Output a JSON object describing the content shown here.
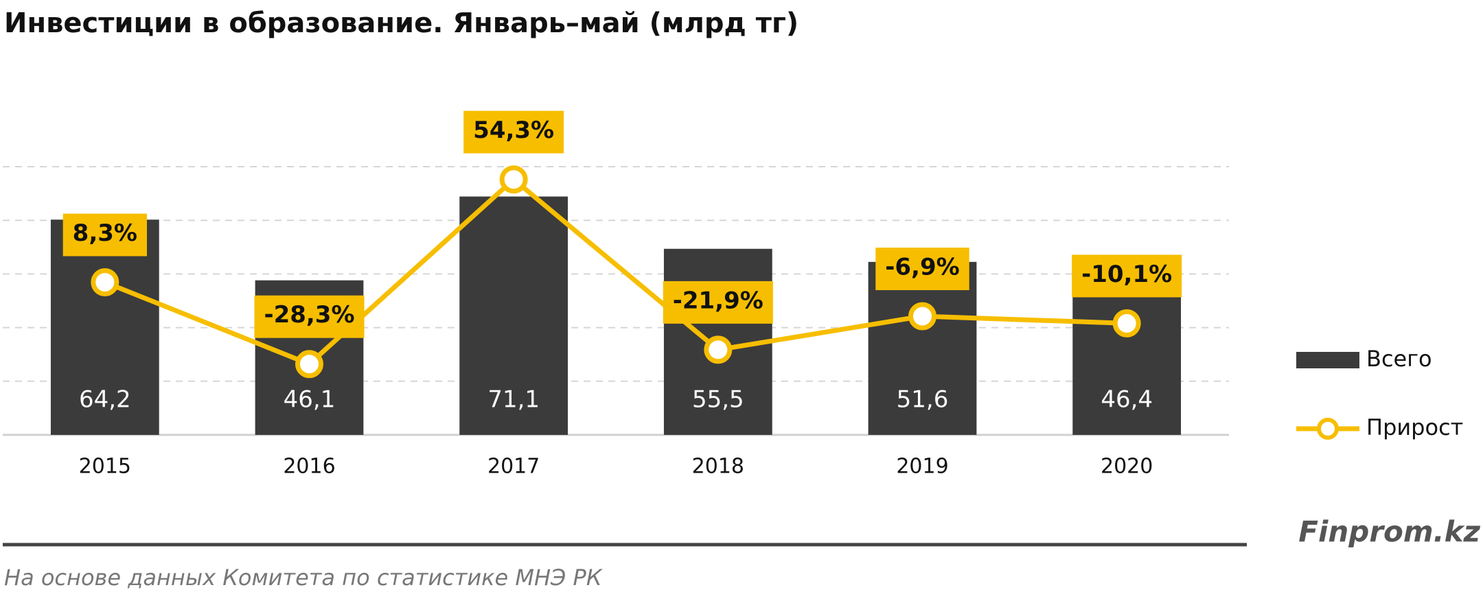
{
  "chart_data": {
    "type": "combo",
    "title": "Инвестиции в образование. Январь–май (млрд тг)",
    "categories": [
      "2015",
      "2016",
      "2017",
      "2018",
      "2019",
      "2020"
    ],
    "series": [
      {
        "name": "Всего",
        "type": "bar",
        "color": "#3b3b3b",
        "values": [
          64.2,
          46.1,
          71.1,
          55.5,
          51.6,
          46.4
        ],
        "value_labels": [
          "64,2",
          "46,1",
          "71,1",
          "55,5",
          "51,6",
          "46,4"
        ]
      },
      {
        "name": "Прирост",
        "type": "line",
        "axis": "y2",
        "color": "#f7be00",
        "values": [
          8.3,
          -28.3,
          54.3,
          -21.9,
          -6.9,
          -10.1
        ],
        "value_labels": [
          "8,3%",
          "-28,3%",
          "54,3%",
          "-21,9%",
          "-6,9%",
          "-10,1%"
        ]
      }
    ],
    "ylim": [
      0,
      80
    ],
    "yticks": [
      0,
      16,
      32,
      48,
      64,
      80
    ],
    "y2lim": [
      -60,
      60
    ],
    "grid": true,
    "legend": "right",
    "watermark": "Finprom.kz",
    "source": "На основе данных  Комитета по статистике МНЭ РК"
  }
}
